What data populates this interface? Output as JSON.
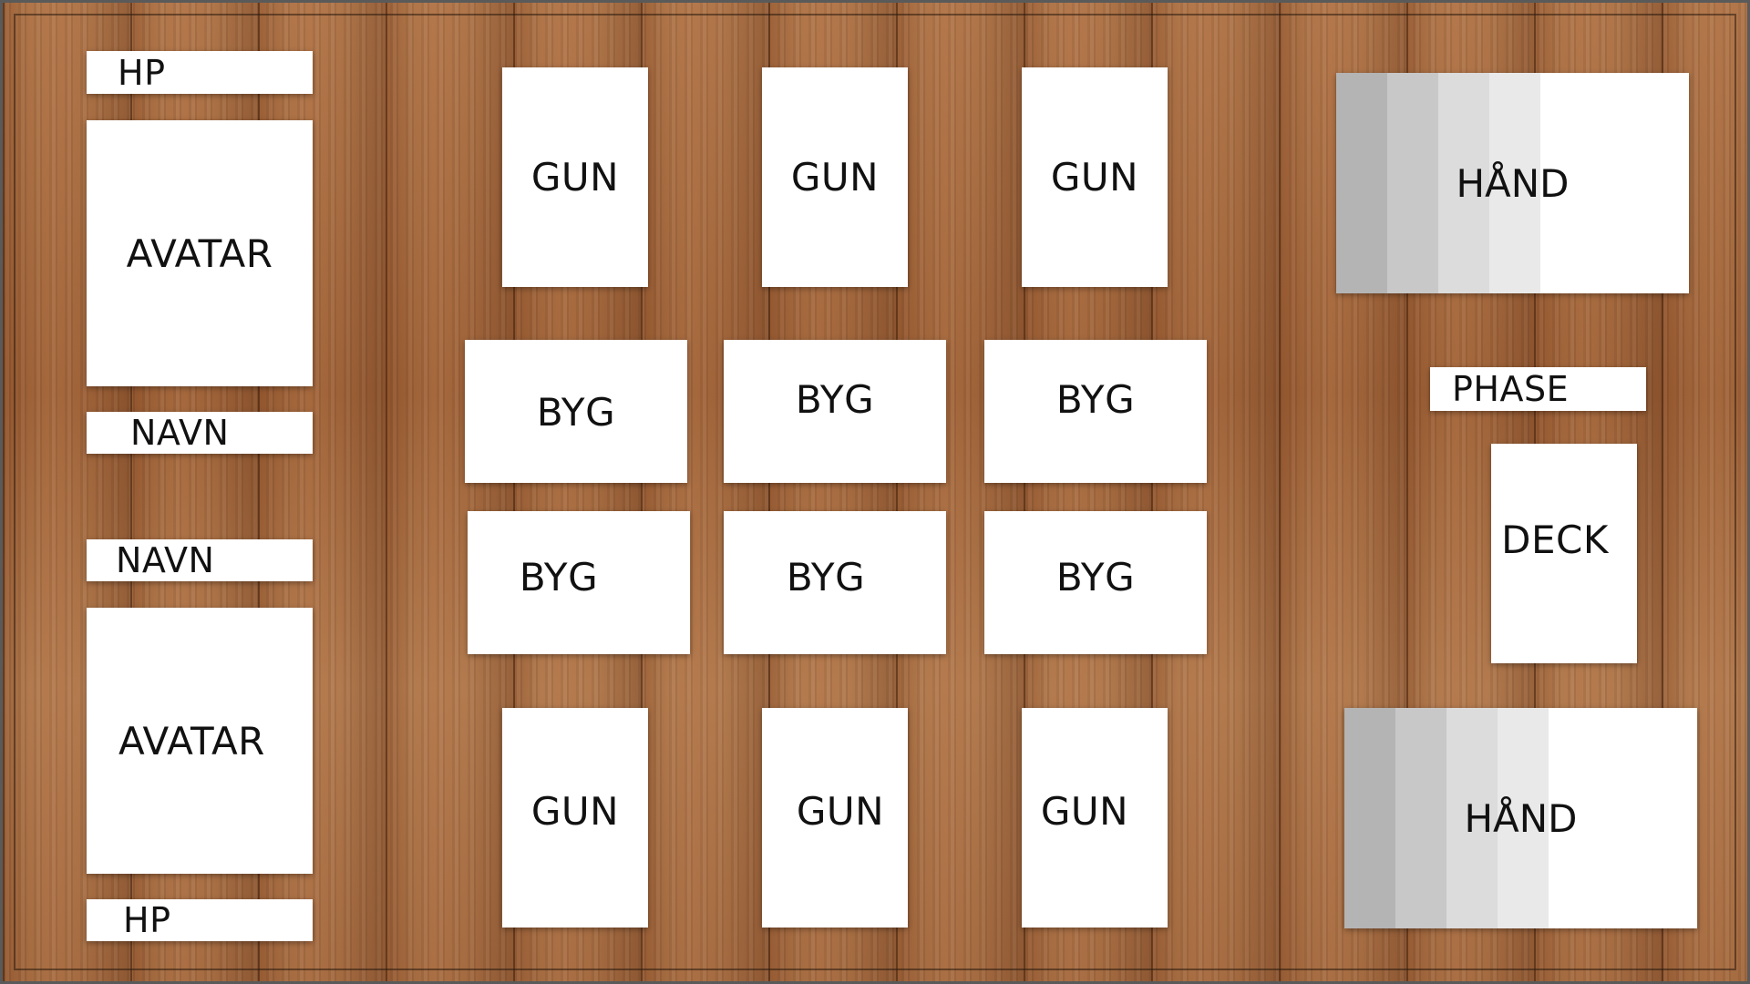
{
  "player_top": {
    "hp_label": "HP",
    "avatar_label": "AVATAR",
    "name_label": "NAVN"
  },
  "player_bottom": {
    "hp_label": "HP",
    "avatar_label": "AVATAR",
    "name_label": "NAVN"
  },
  "field": {
    "top_gun_row": [
      "GUN",
      "GUN",
      "GUN"
    ],
    "byg_row_1": [
      "BYG",
      "BYG",
      "BYG"
    ],
    "byg_row_2": [
      "BYG",
      "BYG",
      "BYG"
    ],
    "bottom_gun_row": [
      "GUN",
      "GUN",
      "GUN"
    ]
  },
  "right_panel": {
    "hand_top_label": "HÅND",
    "phase_label": "PHASE",
    "deck_label": "DECK",
    "hand_bottom_label": "HÅND",
    "hand_stripe_colors": [
      "#b4b4b4",
      "#c8c8c8",
      "#dcdcdc",
      "#e9e9e9"
    ]
  },
  "colors": {
    "slot_background": "#ffffff",
    "board_wood": "#a86d43"
  }
}
